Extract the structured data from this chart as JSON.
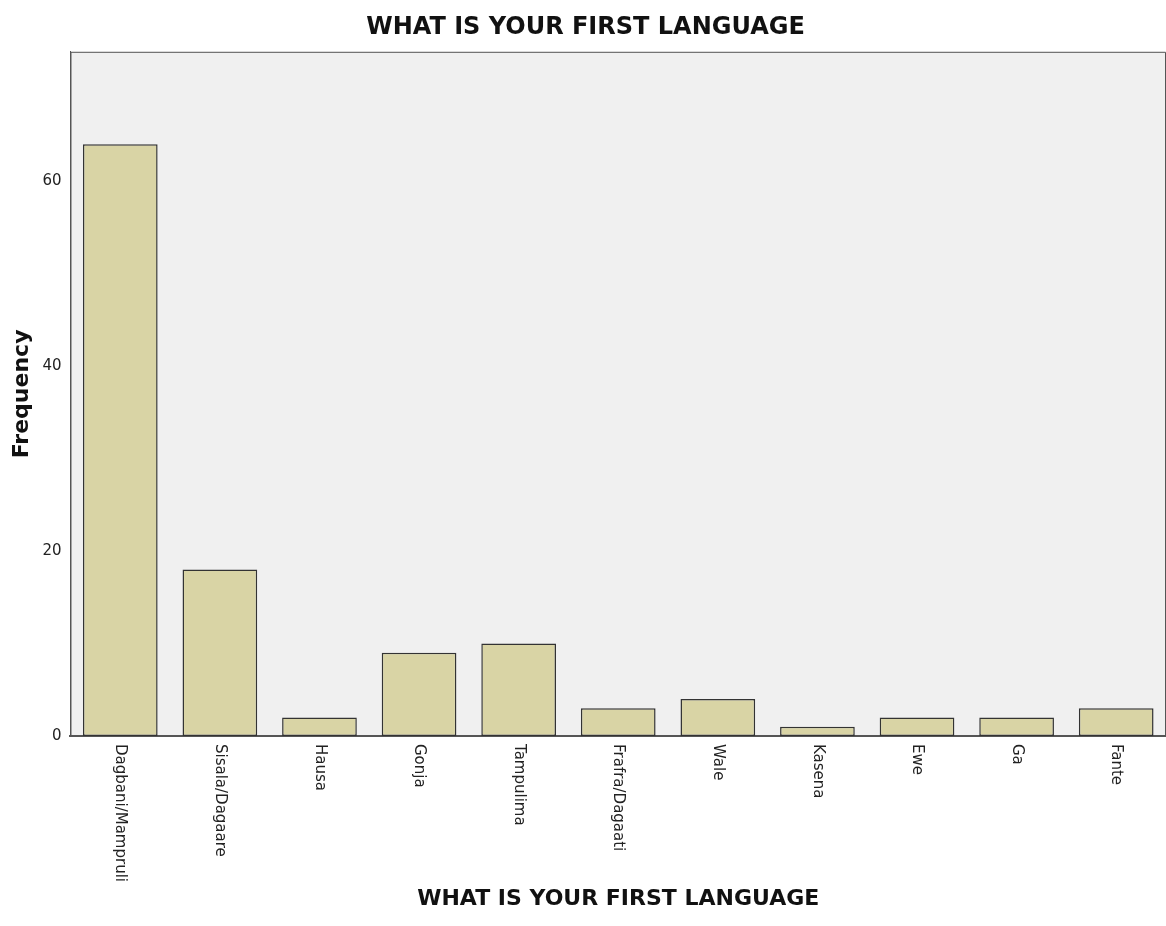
{
  "chart_data": {
    "type": "bar",
    "title": "WHAT IS YOUR FIRST LANGUAGE",
    "xlabel": "WHAT IS YOUR FIRST LANGUAGE",
    "ylabel": "Frequency",
    "categories": [
      "Dagbani/Mampruli",
      "Sisala/Dagaare",
      "Hausa",
      "Gonja",
      "Tampulima",
      "Frafra/Dagaati",
      "Wale",
      "Kasena",
      "Ewe",
      "Ga",
      "Fante"
    ],
    "values": [
      64,
      18,
      2,
      9,
      10,
      3,
      4,
      1,
      2,
      2,
      3
    ],
    "color": "#d9d4a5",
    "ylim": [
      0,
      74
    ],
    "yticks": [
      0,
      20,
      40,
      60
    ],
    "grid": false,
    "legend": false
  }
}
